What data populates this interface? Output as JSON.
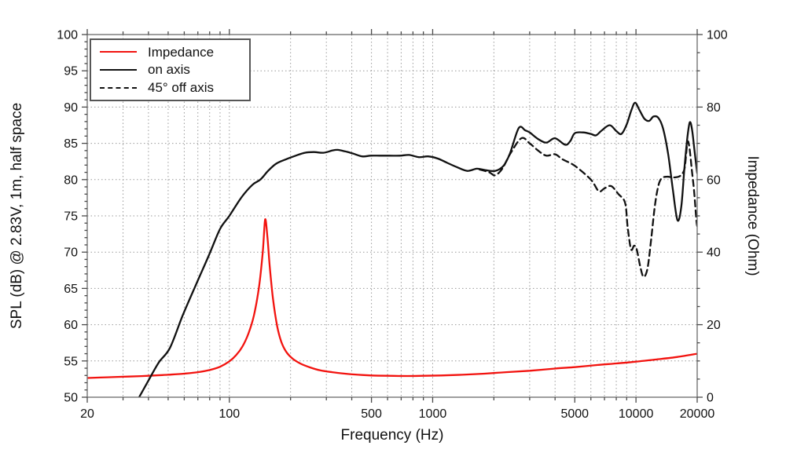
{
  "chart_data": {
    "type": "line",
    "title": "",
    "xlabel": "Frequency (Hz)",
    "ylabel_left": "SPL (dB) @ 2.83V, 1m, half space",
    "ylabel_right": "Impedance (Ohm)",
    "x_axis": {
      "scale": "log",
      "min": 20,
      "max": 20000,
      "labeled_ticks": [
        20,
        100,
        500,
        1000,
        5000,
        10000,
        20000
      ],
      "minor_ticks": [
        30,
        40,
        50,
        60,
        70,
        80,
        90,
        200,
        300,
        400,
        600,
        700,
        800,
        900,
        2000,
        3000,
        4000,
        6000,
        7000,
        8000,
        9000
      ]
    },
    "y_left_axis": {
      "min": 50,
      "max": 100,
      "major_step": 5,
      "minor_step": 1,
      "labels": [
        50,
        55,
        60,
        65,
        70,
        75,
        80,
        85,
        90,
        95,
        100
      ]
    },
    "y_right_axis": {
      "min": 0,
      "max": 100,
      "major_step": 20,
      "minor_step": 5,
      "labels": [
        0,
        20,
        40,
        60,
        80,
        100
      ]
    },
    "grid": {
      "horizontal_every_db": 5,
      "vertical_on_all_log_ticks": true,
      "style": "dotted"
    },
    "legend_position": "top-left",
    "series": [
      {
        "name": "Impedance",
        "axis": "right",
        "color": "#f2130f",
        "style": "solid",
        "unit": "Ohm",
        "points": [
          [
            20,
            5.3
          ],
          [
            25,
            5.5
          ],
          [
            32,
            5.7
          ],
          [
            40,
            5.9
          ],
          [
            50,
            6.2
          ],
          [
            60,
            6.5
          ],
          [
            70,
            6.9
          ],
          [
            80,
            7.5
          ],
          [
            90,
            8.4
          ],
          [
            100,
            9.9
          ],
          [
            108,
            11.6
          ],
          [
            116,
            14.0
          ],
          [
            124,
            17.5
          ],
          [
            132,
            22.5
          ],
          [
            140,
            30.5
          ],
          [
            146,
            40.0
          ],
          [
            150,
            49.0
          ],
          [
            154,
            44.0
          ],
          [
            158,
            36.0
          ],
          [
            164,
            27.0
          ],
          [
            172,
            19.5
          ],
          [
            180,
            15.3
          ],
          [
            190,
            12.6
          ],
          [
            205,
            10.6
          ],
          [
            225,
            9.2
          ],
          [
            250,
            8.2
          ],
          [
            280,
            7.4
          ],
          [
            320,
            6.9
          ],
          [
            370,
            6.5
          ],
          [
            430,
            6.2
          ],
          [
            500,
            6.0
          ],
          [
            600,
            5.9
          ],
          [
            750,
            5.85
          ],
          [
            900,
            5.9
          ],
          [
            1100,
            6.0
          ],
          [
            1400,
            6.2
          ],
          [
            1800,
            6.5
          ],
          [
            2300,
            6.9
          ],
          [
            3000,
            7.3
          ],
          [
            4000,
            7.9
          ],
          [
            5000,
            8.3
          ],
          [
            6500,
            8.9
          ],
          [
            8000,
            9.3
          ],
          [
            10000,
            9.8
          ],
          [
            12500,
            10.4
          ],
          [
            16000,
            11.1
          ],
          [
            20000,
            12.0
          ]
        ]
      },
      {
        "name": "on axis",
        "axis": "left",
        "color": "#111111",
        "style": "solid",
        "unit": "dB",
        "points": [
          [
            36,
            50
          ],
          [
            40,
            52.3
          ],
          [
            45,
            54.8
          ],
          [
            51,
            56.8
          ],
          [
            59,
            61.3
          ],
          [
            69,
            65.7
          ],
          [
            80,
            69.8
          ],
          [
            90,
            73.2
          ],
          [
            100,
            75.0
          ],
          [
            115,
            77.6
          ],
          [
            130,
            79.3
          ],
          [
            142,
            80.0
          ],
          [
            155,
            81.2
          ],
          [
            170,
            82.2
          ],
          [
            190,
            82.8
          ],
          [
            212,
            83.3
          ],
          [
            235,
            83.7
          ],
          [
            260,
            83.8
          ],
          [
            290,
            83.7
          ],
          [
            320,
            84.0
          ],
          [
            340,
            84.1
          ],
          [
            370,
            83.9
          ],
          [
            405,
            83.6
          ],
          [
            450,
            83.2
          ],
          [
            495,
            83.3
          ],
          [
            550,
            83.3
          ],
          [
            615,
            83.3
          ],
          [
            690,
            83.3
          ],
          [
            765,
            83.4
          ],
          [
            855,
            83.1
          ],
          [
            950,
            83.2
          ],
          [
            1060,
            82.9
          ],
          [
            1180,
            82.3
          ],
          [
            1320,
            81.7
          ],
          [
            1480,
            81.2
          ],
          [
            1650,
            81.5
          ],
          [
            1820,
            81.3
          ],
          [
            2030,
            81.2
          ],
          [
            2230,
            81.9
          ],
          [
            2400,
            83.6
          ],
          [
            2650,
            87.1
          ],
          [
            2850,
            86.8
          ],
          [
            3000,
            86.5
          ],
          [
            3300,
            85.6
          ],
          [
            3620,
            85.1
          ],
          [
            4000,
            85.7
          ],
          [
            4480,
            84.8
          ],
          [
            4750,
            85.3
          ],
          [
            5000,
            86.4
          ],
          [
            5500,
            86.5
          ],
          [
            6000,
            86.3
          ],
          [
            6360,
            86.1
          ],
          [
            6800,
            86.8
          ],
          [
            7430,
            87.5
          ],
          [
            8000,
            86.7
          ],
          [
            8480,
            86.3
          ],
          [
            9000,
            87.6
          ],
          [
            9500,
            89.6
          ],
          [
            9900,
            90.6
          ],
          [
            10400,
            89.6
          ],
          [
            11000,
            88.4
          ],
          [
            11600,
            88.1
          ],
          [
            12200,
            88.7
          ],
          [
            12900,
            88.5
          ],
          [
            13600,
            87.0
          ],
          [
            14400,
            83.5
          ],
          [
            15200,
            78.5
          ],
          [
            16000,
            74.4
          ],
          [
            16700,
            76.2
          ],
          [
            17300,
            81.5
          ],
          [
            17900,
            85.8
          ],
          [
            18400,
            87.9
          ],
          [
            18900,
            86.8
          ],
          [
            19400,
            84.0
          ],
          [
            20000,
            80.9
          ]
        ]
      },
      {
        "name": "45° off axis",
        "axis": "left",
        "color": "#111111",
        "style": "dashed",
        "unit": "dB",
        "points": [
          [
            1700,
            81.4
          ],
          [
            1900,
            81.0
          ],
          [
            2030,
            80.6
          ],
          [
            2200,
            81.5
          ],
          [
            2400,
            83.5
          ],
          [
            2730,
            85.7
          ],
          [
            3000,
            85.0
          ],
          [
            3300,
            84.0
          ],
          [
            3620,
            83.3
          ],
          [
            4000,
            83.5
          ],
          [
            4350,
            82.8
          ],
          [
            5000,
            81.9
          ],
          [
            6000,
            80.0
          ],
          [
            6560,
            78.4
          ],
          [
            7000,
            78.8
          ],
          [
            7550,
            79.1
          ],
          [
            8200,
            78.0
          ],
          [
            8840,
            76.8
          ],
          [
            9100,
            73.5
          ],
          [
            9450,
            70.4
          ],
          [
            9800,
            70.9
          ],
          [
            10100,
            70.3
          ],
          [
            10500,
            68.0
          ],
          [
            10900,
            66.6
          ],
          [
            11400,
            67.8
          ],
          [
            11900,
            72.0
          ],
          [
            12400,
            76.5
          ],
          [
            12900,
            79.2
          ],
          [
            13400,
            80.2
          ],
          [
            14200,
            80.4
          ],
          [
            15200,
            80.3
          ],
          [
            16200,
            80.4
          ],
          [
            16900,
            80.8
          ],
          [
            17400,
            81.8
          ],
          [
            17900,
            85.1
          ],
          [
            18300,
            84.5
          ],
          [
            18800,
            81.5
          ],
          [
            19300,
            78.5
          ],
          [
            19800,
            74.5
          ],
          [
            20000,
            73.6
          ]
        ]
      }
    ]
  },
  "legend": {
    "items": [
      {
        "label": "Impedance"
      },
      {
        "label": "on axis"
      },
      {
        "label": "45° off axis"
      }
    ]
  },
  "colors": {
    "impedance_red": "#f2130f",
    "curve_black": "#111111",
    "frame_gray": "#757575",
    "grid_gray": "#9a9a9a"
  }
}
